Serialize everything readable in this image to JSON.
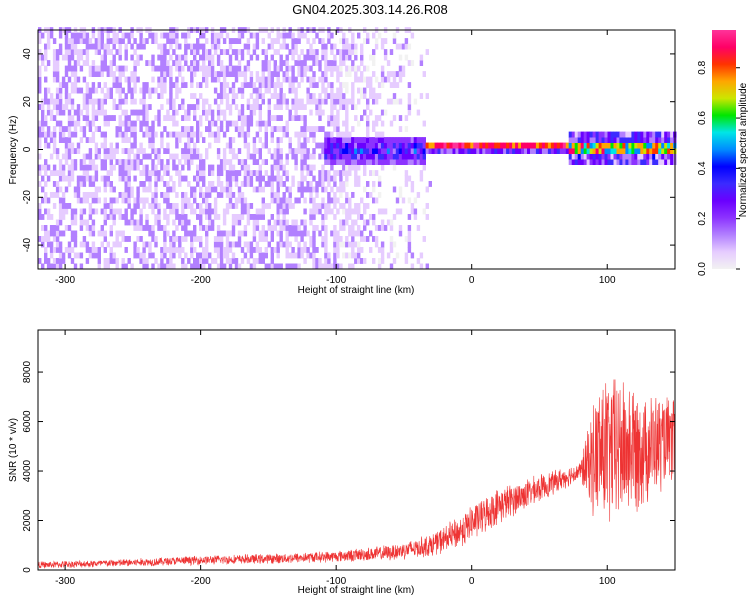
{
  "title": "GN04.2025.303.14.26.R08",
  "colors": {
    "signal_line": "#ee3333",
    "axis": "#000000",
    "background": "#ffffff",
    "colormap": [
      "#f2f2f2",
      "#e6ccff",
      "#b280ff",
      "#8c33ff",
      "#6a00ff",
      "#3b2bff",
      "#0000ff",
      "#008cff",
      "#00e6e6",
      "#00e600",
      "#cce600",
      "#ffa600",
      "#ff3300",
      "#ff0066",
      "#ff3399"
    ]
  },
  "chart_data": [
    {
      "type": "heatmap",
      "title": "",
      "xlabel": "Height of straight line (km)",
      "ylabel": "Frequency (Hz)",
      "xlim": [
        -320,
        150
      ],
      "ylim": [
        -50,
        50
      ],
      "x_ticks": [
        "-300",
        "-200",
        "-100",
        "0",
        "100"
      ],
      "x_tick_values": [
        -300,
        -200,
        -100,
        0,
        100
      ],
      "y_ticks": [
        "-40",
        "-20",
        "0",
        "20",
        "40"
      ],
      "y_tick_values": [
        -40,
        -20,
        0,
        20,
        40
      ],
      "colorbar": {
        "label": "Normalized spectral amplitude",
        "range": [
          0,
          0.95
        ],
        "ticks": [
          "0.0",
          "0.2",
          "0.4",
          "0.6",
          "0.8"
        ],
        "tick_values": [
          0.0,
          0.2,
          0.4,
          0.6,
          0.8
        ]
      },
      "regions": [
        {
          "x_range": [
            -320,
            -100
          ],
          "freq_range": [
            -50,
            50
          ],
          "amplitude": 0.05,
          "description_level": "noise"
        },
        {
          "x_range": [
            -100,
            -30
          ],
          "freq_range": [
            -50,
            50
          ],
          "amplitude": 0.02,
          "description_level": "weak noise"
        },
        {
          "x_range": [
            -110,
            -35
          ],
          "freq_range": [
            -5,
            6
          ],
          "amplitude": 0.35
        },
        {
          "x_range": [
            -35,
            70
          ],
          "freq_range": [
            -1,
            3
          ],
          "amplitude": 0.9
        },
        {
          "x_range": [
            70,
            150
          ],
          "freq_range": [
            -5,
            6
          ],
          "amplitude": 0.6
        }
      ]
    },
    {
      "type": "line",
      "title": "",
      "xlabel": "Height of straight line (km)",
      "ylabel": "SNR (10 * v/v)",
      "xlim": [
        -320,
        150
      ],
      "ylim": [
        0,
        9700
      ],
      "x_ticks": [
        "-300",
        "-200",
        "-100",
        "0",
        "100"
      ],
      "x_tick_values": [
        -300,
        -200,
        -100,
        0,
        100
      ],
      "y_ticks": [
        "0",
        "2000",
        "4000",
        "6000",
        "8000"
      ],
      "y_tick_values": [
        0,
        2000,
        4000,
        6000,
        8000
      ],
      "envelope_x": [
        -320,
        -250,
        -200,
        -150,
        -100,
        -60,
        -30,
        -10,
        0,
        20,
        50,
        80,
        85,
        95,
        110,
        130,
        150
      ],
      "envelope_mean": [
        200,
        300,
        400,
        450,
        550,
        700,
        1000,
        1500,
        1900,
        2600,
        3300,
        4000,
        4200,
        4800,
        4900,
        5000,
        5200
      ],
      "envelope_spread": [
        150,
        180,
        200,
        220,
        250,
        350,
        500,
        700,
        800,
        800,
        600,
        400,
        1500,
        3500,
        3300,
        2500,
        1800
      ]
    }
  ]
}
